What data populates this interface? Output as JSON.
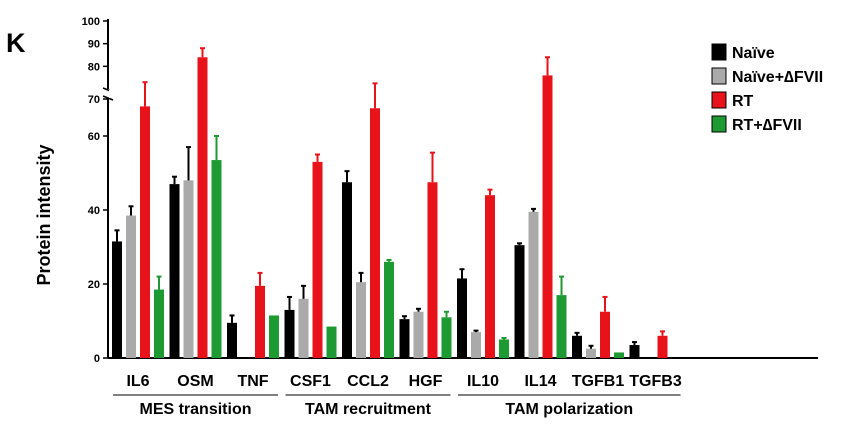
{
  "panel_label": "K",
  "chart_data": {
    "type": "bar",
    "ylabel": "Protein intensity",
    "xlabel": "",
    "y_axis_break": {
      "lower_range": [
        0,
        70
      ],
      "upper_range": [
        70,
        100
      ]
    },
    "yticks_lower": [
      0,
      20,
      40,
      60
    ],
    "yticks_upper": [
      70,
      80,
      90,
      100
    ],
    "categories": [
      "IL6",
      "OSM",
      "TNF",
      "CSF1",
      "CCL2",
      "HGF",
      "IL10",
      "IL14",
      "TGFB1",
      "TGFB3"
    ],
    "series": [
      {
        "name": "Naïve",
        "color": "#000000",
        "values": [
          31.5,
          47,
          9.5,
          13,
          47.5,
          10.5,
          21.5,
          30.5,
          6,
          3.5
        ],
        "errors": [
          3,
          2,
          2,
          3.5,
          3,
          0.8,
          2.5,
          0.5,
          0.8,
          0.8
        ]
      },
      {
        "name": "Naïve+∆FVII",
        "color": "#aaaaaa",
        "values": [
          38.5,
          48,
          0,
          16,
          20.5,
          12.5,
          7,
          39.5,
          2.5,
          0
        ],
        "errors": [
          2.5,
          9,
          0,
          3.5,
          2.5,
          0.8,
          0.4,
          0.8,
          0.8,
          0
        ]
      },
      {
        "name": "RT",
        "color": "#e8121a",
        "values": [
          68,
          84,
          19.5,
          53,
          67.5,
          47.5,
          44,
          76,
          12.5,
          6
        ],
        "errors": [
          5,
          4,
          3.5,
          2,
          5,
          8,
          1.5,
          8,
          4,
          1.2
        ]
      },
      {
        "name": "RT+∆FVII",
        "color": "#1e9a32",
        "values": [
          18.5,
          53.5,
          11.5,
          8.5,
          26,
          11,
          5,
          17,
          1.5,
          0
        ],
        "errors": [
          3.5,
          6.5,
          0,
          0,
          0.5,
          1.5,
          0.4,
          5,
          0,
          0
        ]
      }
    ],
    "groups": [
      {
        "label": "MES transition",
        "from": 0,
        "to": 2
      },
      {
        "label": "TAM recruitment",
        "from": 3,
        "to": 5
      },
      {
        "label": "TAM polarization",
        "from": 6,
        "to": 9
      }
    ],
    "legend": {
      "position": "top-right",
      "entries": [
        "Naïve",
        "Naïve+∆FVII",
        "RT",
        "RT+∆FVII"
      ]
    }
  }
}
